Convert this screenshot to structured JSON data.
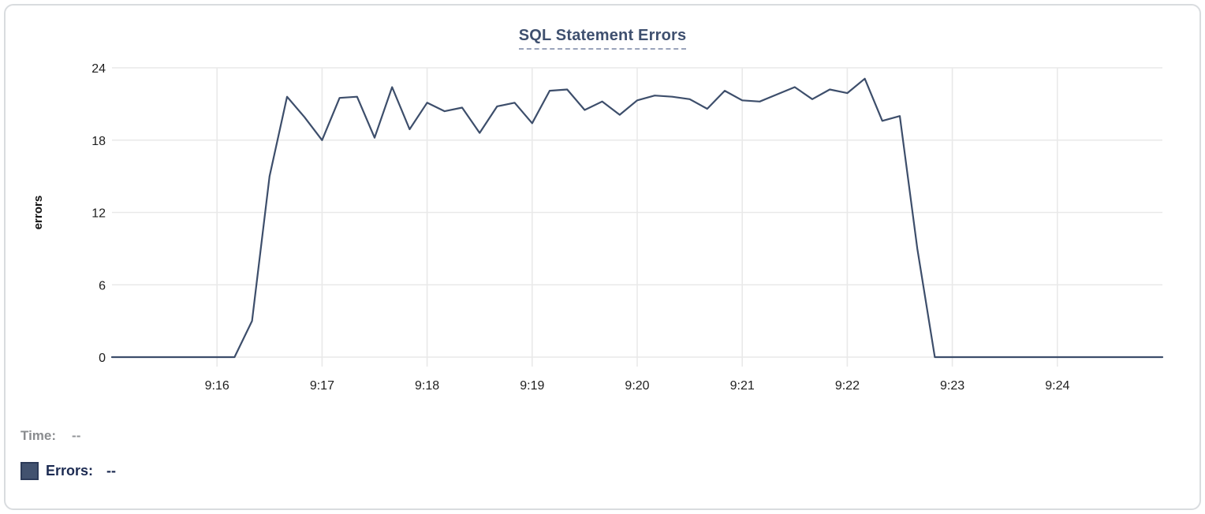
{
  "chart_data": {
    "type": "line",
    "title": "SQL Statement Errors",
    "xlabel": "",
    "ylabel": "errors",
    "ylim": [
      0,
      24
    ],
    "yticks": [
      0,
      6,
      12,
      18,
      24
    ],
    "xticks": [
      "9:16",
      "9:17",
      "9:18",
      "9:19",
      "9:20",
      "9:21",
      "9:22",
      "9:23",
      "9:24"
    ],
    "x_start": "9:15:00",
    "x_end": "9:25:00",
    "x_step_seconds": 10,
    "grid": true,
    "legend_position": "bottom-left",
    "line_color": "#3d4e6b",
    "grid_color": "#e9e9e9",
    "axis_text_color": "#1e1e1e",
    "series": [
      {
        "name": "Errors",
        "values": [
          0,
          0,
          0,
          0,
          0,
          0,
          0,
          0,
          3,
          15,
          21.6,
          19.9,
          18,
          21.5,
          21.6,
          18.2,
          22.4,
          18.9,
          21.1,
          20.4,
          20.7,
          18.6,
          20.8,
          21.1,
          19.4,
          22.1,
          22.2,
          20.5,
          21.2,
          20.1,
          21.3,
          21.7,
          21.6,
          21.4,
          20.6,
          22.1,
          21.3,
          21.2,
          21.8,
          22.4,
          21.4,
          22.2,
          21.9,
          23.1,
          19.6,
          20,
          9,
          0,
          0,
          0,
          0,
          0,
          0,
          0,
          0,
          0,
          0,
          0,
          0,
          0,
          0
        ]
      }
    ]
  },
  "legend": {
    "time_label": "Time:",
    "time_value": "--",
    "errors_label": "Errors:",
    "errors_value": "--"
  },
  "colors": {
    "accent_line": "#3d4e6b",
    "title_text": "#3f506f",
    "title_underline": "#9aa4bb",
    "muted_text": "#8a8c8f",
    "errors_text": "#1c2b52",
    "swatch_fill": "#42526f",
    "card_border": "#d9dcdf"
  }
}
